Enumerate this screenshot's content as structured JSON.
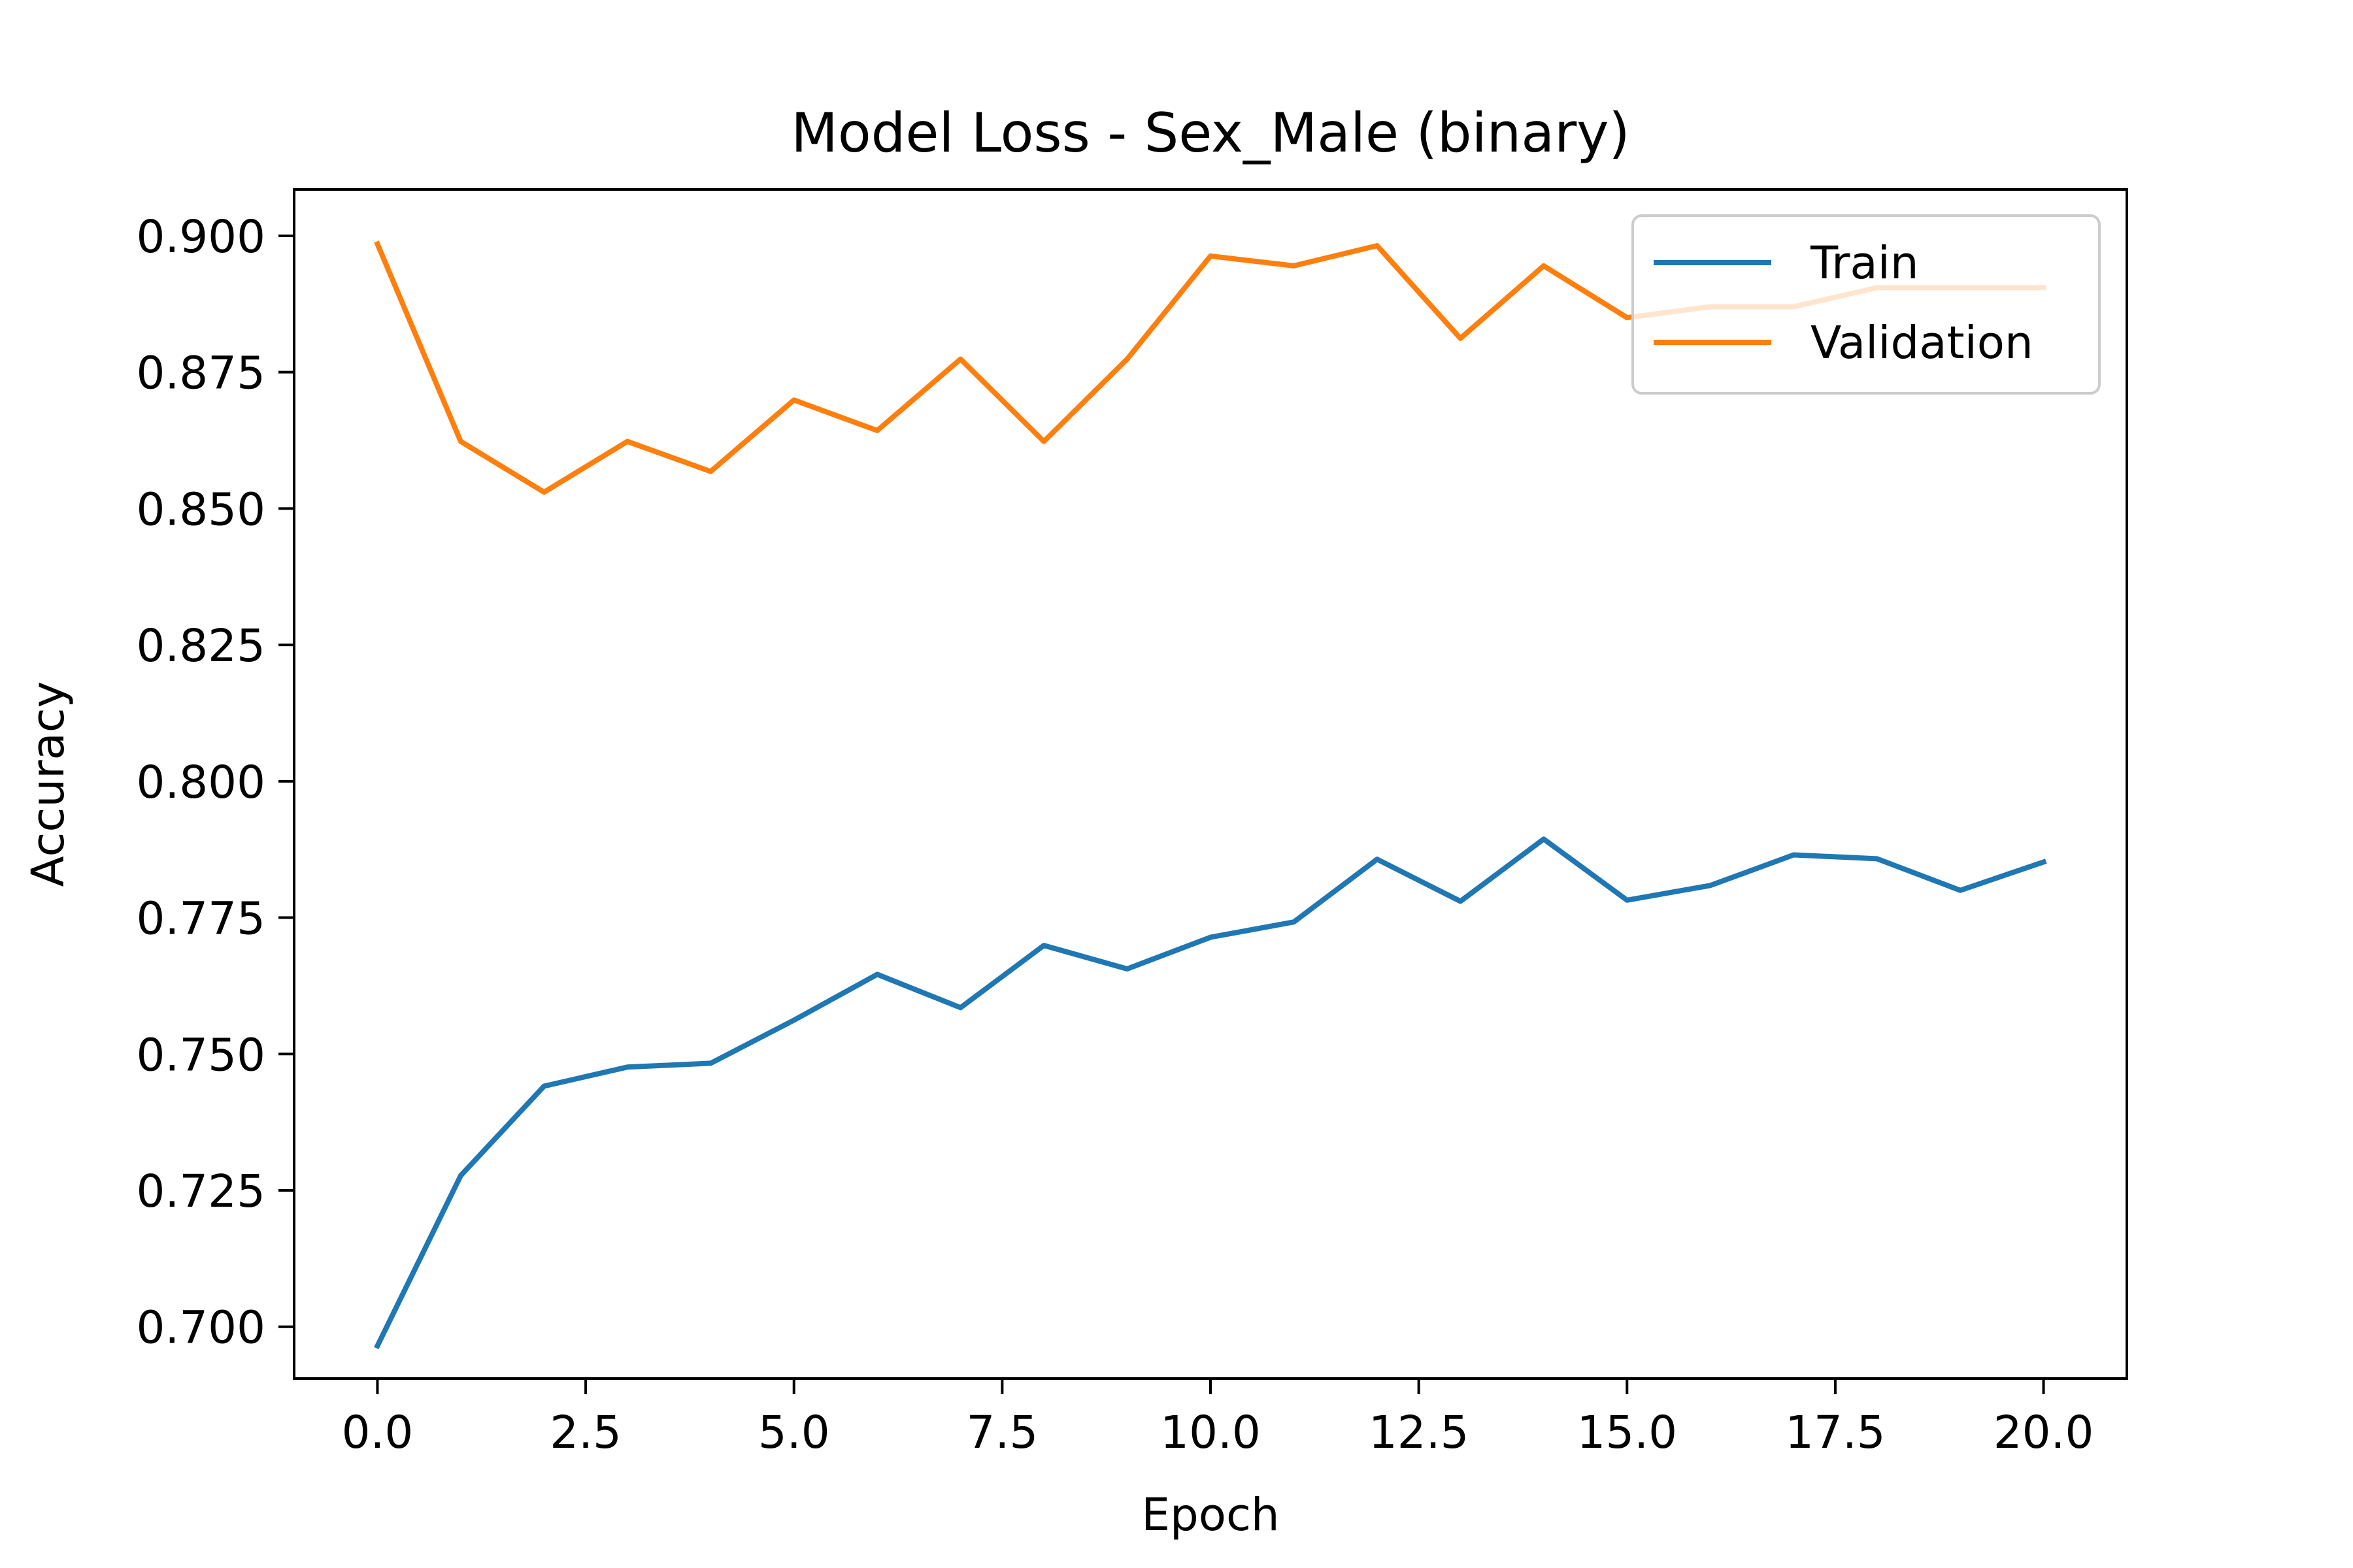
{
  "chart_data": {
    "type": "line",
    "title": "Model Loss - Sex_Male (binary)",
    "xlabel": "Epoch",
    "ylabel": "Accuracy",
    "xlim": [
      -1.0,
      21.0
    ],
    "ylim": [
      0.6905,
      0.9085
    ],
    "xticks": [
      0.0,
      2.5,
      5.0,
      7.5,
      10.0,
      12.5,
      15.0,
      17.5,
      20.0
    ],
    "xtick_labels": [
      "0.0",
      "2.5",
      "5.0",
      "7.5",
      "10.0",
      "12.5",
      "15.0",
      "17.5",
      "20.0"
    ],
    "yticks": [
      0.7,
      0.725,
      0.75,
      0.775,
      0.8,
      0.825,
      0.85,
      0.875,
      0.9
    ],
    "ytick_labels": [
      "0.700",
      "0.725",
      "0.750",
      "0.775",
      "0.800",
      "0.825",
      "0.850",
      "0.875",
      "0.900"
    ],
    "grid": false,
    "legend_position": "top-right",
    "x": [
      0,
      1,
      2,
      3,
      4,
      5,
      6,
      7,
      8,
      9,
      10,
      11,
      12,
      13,
      14,
      15,
      16,
      17,
      18,
      19,
      20
    ],
    "series": [
      {
        "name": "Train",
        "color": "#1f77b4",
        "values": [
          0.6965,
          0.7277,
          0.7441,
          0.7476,
          0.7483,
          0.7562,
          0.7646,
          0.7585,
          0.7699,
          0.7656,
          0.7714,
          0.7742,
          0.7857,
          0.778,
          0.7894,
          0.7782,
          0.7809,
          0.7865,
          0.7858,
          0.78,
          0.7852
        ]
      },
      {
        "name": "Validation",
        "color": "#ff7f0e",
        "values": [
          0.8985,
          0.8623,
          0.853,
          0.8623,
          0.8568,
          0.8699,
          0.8643,
          0.8774,
          0.8623,
          0.8774,
          0.8963,
          0.8945,
          0.8982,
          0.8812,
          0.8945,
          0.885,
          0.887,
          0.887,
          0.8905,
          0.8905,
          0.8905
        ]
      }
    ]
  }
}
